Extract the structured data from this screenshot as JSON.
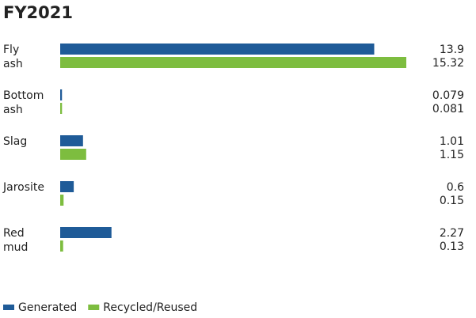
{
  "chart_data": {
    "type": "barh",
    "title": "FY2021",
    "categories": [
      "Fly ash",
      "Bottom ash",
      "Slag",
      "Jarosite",
      "Red mud"
    ],
    "series": [
      {
        "name": "Generated",
        "color": "#1f5b98",
        "values": [
          13.9,
          0.079,
          1.01,
          0.6,
          2.27
        ]
      },
      {
        "name": "Recycled/Reused",
        "color": "#7dbd3f",
        "values": [
          15.32,
          0.081,
          1.15,
          0.15,
          0.13
        ]
      }
    ]
  }
}
